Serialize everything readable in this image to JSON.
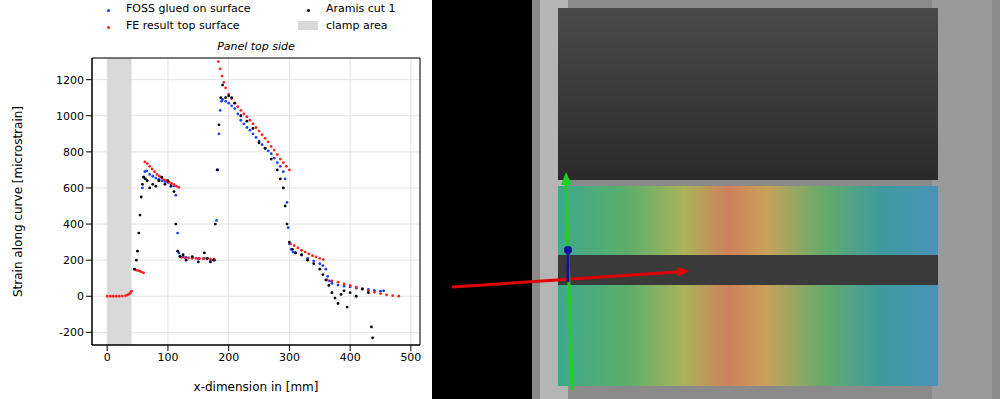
{
  "chart_data": {
    "type": "scatter",
    "title": "Panel top side",
    "x_label": "x-dimension in [mm]",
    "y_label": "Strain along curve [microstrain]",
    "xlim": [
      -25,
      515
    ],
    "xticks": [
      0,
      100,
      200,
      300,
      400,
      500
    ],
    "ylim": [
      -270,
      1320
    ],
    "yticks": [
      -200,
      0,
      200,
      400,
      600,
      800,
      1000,
      1200
    ],
    "grid": true,
    "legend": "top",
    "series": [
      {
        "name": "FOSS glued on surface",
        "color": "#1f3fff",
        "type": "scatter",
        "marker": "o",
        "x": [
          58,
          60,
          62,
          65,
          70,
          75,
          80,
          85,
          90,
          95,
          100,
          105,
          110,
          113,
          116,
          118,
          120,
          125,
          130,
          140,
          150,
          160,
          170,
          177,
          180,
          182,
          184,
          186,
          188,
          190,
          195,
          200,
          205,
          210,
          215,
          220,
          225,
          230,
          235,
          240,
          245,
          250,
          255,
          260,
          265,
          270,
          275,
          280,
          285,
          290,
          293,
          296,
          298,
          300,
          303,
          306,
          310,
          320,
          330,
          340,
          350,
          355,
          360,
          363,
          366,
          370,
          380,
          390,
          400,
          410,
          420,
          430,
          440,
          450,
          455
        ],
        "values": [
          600,
          660,
          690,
          695,
          675,
          665,
          655,
          648,
          640,
          635,
          630,
          622,
          612,
          560,
          350,
          240,
          222,
          218,
          215,
          212,
          208,
          210,
          202,
          200,
          420,
          700,
          900,
          1030,
          1080,
          1090,
          1080,
          1070,
          1055,
          1040,
          1010,
          975,
          955,
          935,
          920,
          900,
          880,
          860,
          840,
          820,
          805,
          790,
          765,
          740,
          720,
          690,
          650,
          520,
          380,
          290,
          260,
          245,
          240,
          228,
          210,
          195,
          180,
          170,
          150,
          110,
          85,
          72,
          62,
          56,
          52,
          45,
          42,
          38,
          32,
          28,
          30
        ]
      },
      {
        "name": "FE result top surface",
        "color": "#ff2020",
        "type": "scatter",
        "marker": "o",
        "x": [
          0,
          5,
          10,
          15,
          20,
          25,
          30,
          33,
          36,
          38,
          40,
          45,
          48,
          51,
          54,
          57,
          60,
          62,
          66,
          70,
          74,
          78,
          82,
          86,
          90,
          94,
          98,
          102,
          106,
          110,
          114,
          118,
          122,
          128,
          134,
          140,
          146,
          152,
          158,
          164,
          170,
          176,
          183,
          186,
          189,
          192,
          195,
          200,
          205,
          210,
          215,
          220,
          225,
          230,
          235,
          240,
          245,
          250,
          255,
          260,
          265,
          270,
          275,
          280,
          285,
          290,
          295,
          300,
          302,
          308,
          314,
          320,
          326,
          332,
          338,
          344,
          350,
          356,
          362,
          370,
          380,
          390,
          400,
          410,
          420,
          430,
          440,
          450,
          460,
          470,
          480
        ],
        "values": [
          0,
          0,
          0,
          0,
          0,
          1,
          3,
          6,
          12,
          18,
          28,
          150,
          145,
          142,
          138,
          134,
          130,
          745,
          735,
          720,
          705,
          690,
          675,
          665,
          655,
          645,
          640,
          632,
          625,
          618,
          610,
          603,
          215,
          213,
          212,
          211,
          210,
          209,
          208,
          207,
          206,
          205,
          1300,
          1260,
          1220,
          1185,
          1155,
          1120,
          1095,
          1070,
          1050,
          1030,
          1010,
          995,
          975,
          955,
          935,
          915,
          895,
          875,
          855,
          830,
          810,
          785,
          760,
          740,
          720,
          700,
          290,
          280,
          268,
          255,
          245,
          235,
          225,
          218,
          210,
          203,
          90,
          85,
          78,
          68,
          60,
          50,
          40,
          30,
          22,
          15,
          8,
          3,
          0
        ]
      },
      {
        "name": "Aramis cut 1",
        "color": "#000000",
        "type": "scatter",
        "marker": "o",
        "x": [
          45,
          48,
          50,
          52,
          54,
          56,
          58,
          60,
          63,
          66,
          70,
          75,
          80,
          85,
          90,
          95,
          100,
          105,
          110,
          113,
          116,
          120,
          125,
          130,
          140,
          150,
          160,
          165,
          170,
          175,
          178,
          181,
          184,
          187,
          190,
          195,
          200,
          205,
          210,
          220,
          230,
          240,
          250,
          260,
          270,
          280,
          285,
          290,
          293,
          296,
          300,
          305,
          310,
          320,
          330,
          340,
          350,
          355,
          360,
          365,
          370,
          375,
          380,
          385,
          390,
          395,
          400,
          410,
          420,
          430,
          435,
          437
        ],
        "values": [
          150,
          200,
          250,
          350,
          450,
          550,
          620,
          660,
          650,
          640,
          600,
          620,
          610,
          640,
          660,
          620,
          640,
          610,
          580,
          400,
          250,
          220,
          230,
          200,
          220,
          190,
          240,
          210,
          190,
          200,
          400,
          700,
          950,
          1100,
          1170,
          1100,
          1110,
          1100,
          1070,
          1000,
          970,
          930,
          850,
          820,
          760,
          700,
          650,
          600,
          500,
          400,
          300,
          260,
          240,
          230,
          200,
          180,
          150,
          120,
          90,
          60,
          20,
          -10,
          -40,
          10,
          30,
          -60,
          20,
          0,
          40,
          20,
          -170,
          -230
        ]
      },
      {
        "name": "clamp area",
        "color": "#d9d9d9",
        "type": "area",
        "x": [
          0,
          40
        ]
      }
    ]
  }
}
